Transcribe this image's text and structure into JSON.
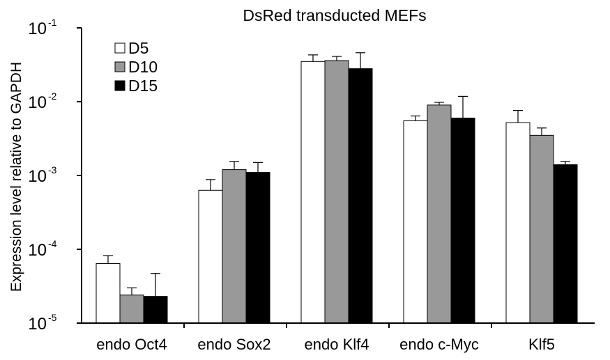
{
  "chart_data": {
    "type": "bar",
    "title": "DsRed transducted MEFs",
    "ylabel": "Expression level relative to GAPDH",
    "xlabel": "",
    "y_scale": "log",
    "ylim": [
      1e-05,
      0.1
    ],
    "yticks": [
      {
        "base": "10",
        "exp": "-1",
        "value": 0.1
      },
      {
        "base": "10",
        "exp": "-2",
        "value": 0.01
      },
      {
        "base": "10",
        "exp": "-3",
        "value": 0.001
      },
      {
        "base": "10",
        "exp": "-4",
        "value": 0.0001
      },
      {
        "base": "10",
        "exp": "-5",
        "value": 1e-05
      }
    ],
    "categories": [
      "endo Oct4",
      "endo Sox2",
      "endo Klf4",
      "endo c-Myc",
      "Klf5"
    ],
    "legend_position": "top-left",
    "grid": false,
    "series": [
      {
        "name": "D5",
        "color": "#ffffff",
        "values": [
          6.4e-05,
          0.00063,
          0.035,
          0.0055,
          0.0052
        ],
        "errors_upper": [
          8.2e-05,
          0.00088,
          0.043,
          0.0064,
          0.0076
        ]
      },
      {
        "name": "D10",
        "color": "#999999",
        "values": [
          2.4e-05,
          0.0012,
          0.036,
          0.009,
          0.0035
        ],
        "errors_upper": [
          3e-05,
          0.00155,
          0.041,
          0.0098,
          0.0044
        ]
      },
      {
        "name": "D15",
        "color": "#000000",
        "values": [
          2.3e-05,
          0.0011,
          0.028,
          0.006,
          0.0014
        ],
        "errors_upper": [
          4.7e-05,
          0.0015,
          0.046,
          0.0118,
          0.00155
        ]
      }
    ]
  }
}
